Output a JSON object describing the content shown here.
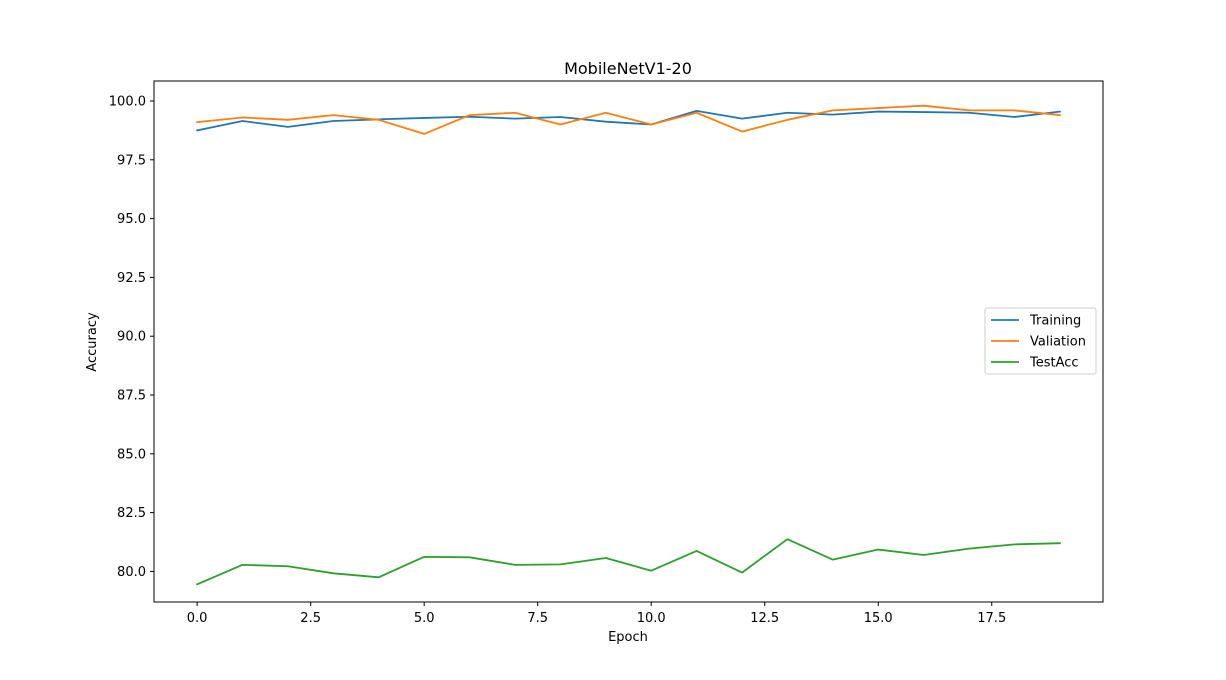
{
  "chart_data": {
    "type": "line",
    "title": "MobileNetV1-20",
    "xlabel": "Epoch",
    "ylabel": "Accuracy",
    "xlim": [
      -0.95,
      19.95
    ],
    "ylim": [
      78.7,
      100.85
    ],
    "x_ticks": [
      0.0,
      2.5,
      5.0,
      7.5,
      10.0,
      12.5,
      15.0,
      17.5
    ],
    "x_tick_labels": [
      "0.0",
      "2.5",
      "5.0",
      "7.5",
      "10.0",
      "12.5",
      "15.0",
      "17.5"
    ],
    "y_ticks": [
      80.0,
      82.5,
      85.0,
      87.5,
      90.0,
      92.5,
      95.0,
      97.5,
      100.0
    ],
    "y_tick_labels": [
      "80.0",
      "82.5",
      "85.0",
      "87.5",
      "90.0",
      "92.5",
      "95.0",
      "97.5",
      "100.0"
    ],
    "grid": false,
    "legend_position": "center-right",
    "x": [
      0,
      1,
      2,
      3,
      4,
      5,
      6,
      7,
      8,
      9,
      10,
      11,
      12,
      13,
      14,
      15,
      16,
      17,
      18,
      19
    ],
    "series": [
      {
        "name": "Training",
        "color": "#1f77b4",
        "values": [
          98.75,
          99.15,
          98.9,
          99.15,
          99.22,
          99.28,
          99.33,
          99.25,
          99.32,
          99.12,
          99.0,
          99.58,
          99.25,
          99.5,
          99.42,
          99.55,
          99.53,
          99.5,
          99.32,
          99.55
        ]
      },
      {
        "name": "Valiation",
        "color": "#ff7f0e",
        "values": [
          99.1,
          99.3,
          99.2,
          99.4,
          99.2,
          98.6,
          99.4,
          99.5,
          99.0,
          99.5,
          99.0,
          99.5,
          98.7,
          99.2,
          99.6,
          99.7,
          99.8,
          99.6,
          99.6,
          99.4
        ]
      },
      {
        "name": "TestAcc",
        "color": "#2ca02c",
        "values": [
          79.45,
          80.28,
          80.22,
          79.92,
          79.75,
          80.62,
          80.6,
          80.28,
          80.3,
          80.57,
          80.03,
          80.87,
          79.95,
          81.37,
          80.5,
          80.93,
          80.7,
          80.97,
          81.15,
          81.2
        ]
      }
    ]
  }
}
